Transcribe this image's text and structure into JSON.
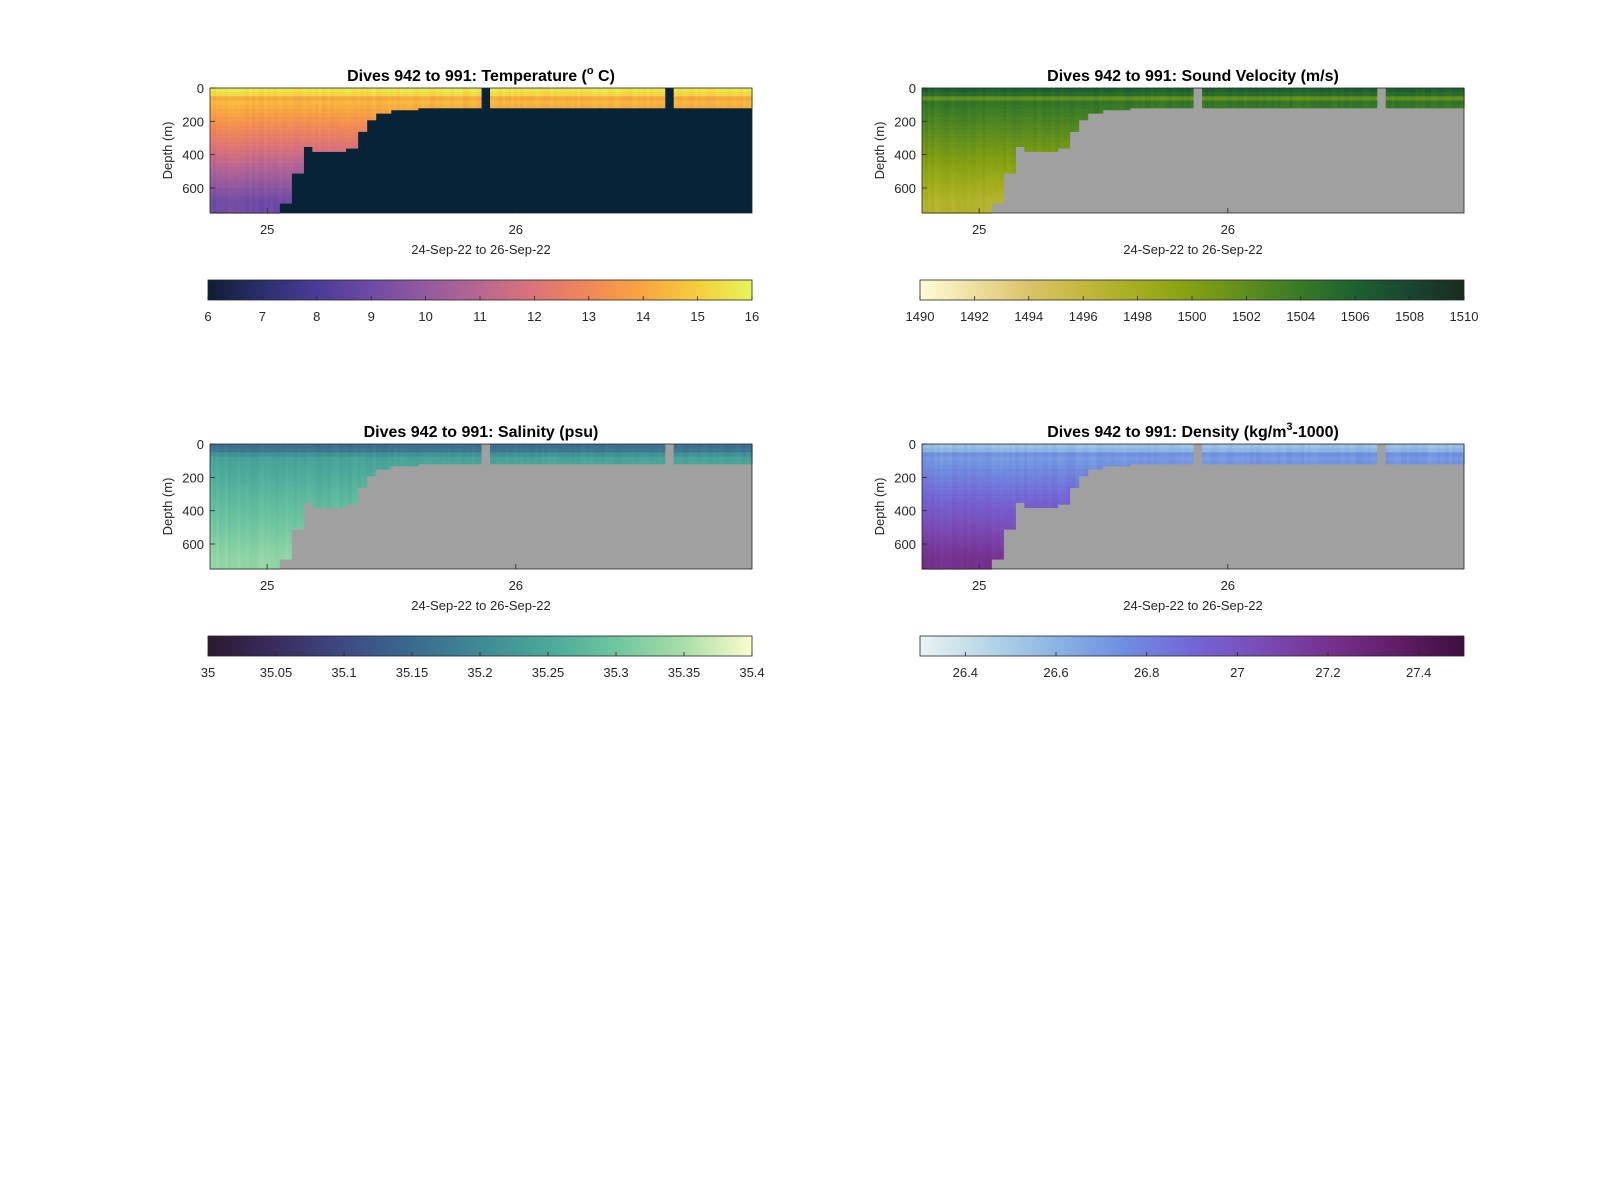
{
  "figure": {
    "background": "#ffffff"
  },
  "chart_data": [
    {
      "type": "heatmap",
      "key": "temp",
      "title": "Dives 942 to 991: Temperature (° C)",
      "title_parts": {
        "before": "Dives 942 to 991: Temperature (",
        "sup": "o",
        "after": " C)"
      },
      "xlabel": "24-Sep-22 to 26-Sep-22",
      "ylabel": "Depth (m)",
      "x_ticks": [
        "25",
        "26"
      ],
      "y_ticks": [
        "0",
        "200",
        "400",
        "600"
      ],
      "ylim": [
        0,
        750
      ],
      "xlim_days": [
        24.77,
        26.95
      ],
      "colorbar": {
        "ticks": [
          "6",
          "7",
          "8",
          "9",
          "10",
          "11",
          "12",
          "13",
          "14",
          "15",
          "16"
        ],
        "tick_values": [
          6,
          7,
          8,
          9,
          10,
          11,
          12,
          13,
          14,
          15,
          16
        ],
        "range": [
          6,
          16
        ],
        "colors": [
          "#0f1d35",
          "#2b2f6e",
          "#4a3b96",
          "#6f4ba6",
          "#935a9f",
          "#b86692",
          "#dc7478",
          "#f18758",
          "#f8a640",
          "#f6cd3b",
          "#e5f55b"
        ]
      },
      "mask_color": "#062337",
      "no_data_color": "#062337",
      "field": {
        "surface_value": 14.5,
        "deep_value": 9.0,
        "thermocline_depth": 80,
        "cap_top_value": 15.6,
        "cap_bottom_value": 13.2
      }
    },
    {
      "type": "heatmap",
      "key": "sv",
      "title": "Dives 942 to 991: Sound Velocity (m/s)",
      "xlabel": "24-Sep-22 to 26-Sep-22",
      "ylabel": "Depth (m)",
      "x_ticks": [
        "25",
        "26"
      ],
      "y_ticks": [
        "0",
        "200",
        "400",
        "600"
      ],
      "ylim": [
        0,
        750
      ],
      "xlim_days": [
        24.77,
        26.95
      ],
      "colorbar": {
        "ticks": [
          "1490",
          "1492",
          "1494",
          "1496",
          "1498",
          "1500",
          "1502",
          "1504",
          "1506",
          "1508",
          "1510"
        ],
        "tick_values": [
          1490,
          1492,
          1494,
          1496,
          1498,
          1500,
          1502,
          1504,
          1506,
          1508,
          1510
        ],
        "range": [
          1490,
          1510
        ],
        "colors": [
          "#fefcd8",
          "#eedfa0",
          "#d9c46a",
          "#c2b83c",
          "#a4ae1e",
          "#84a012",
          "#5e8d1e",
          "#387a26",
          "#1d6130",
          "#194630",
          "#1a2c20"
        ]
      },
      "mask_color": "#a0a0a0",
      "no_data_color": "#a0a0a0",
      "field": {
        "surface_value": 1504.5,
        "deep_value": 1497.0,
        "thermocline_depth": 80,
        "cap_top_value": 1506.0,
        "cap_bottom_value": 1499.5
      }
    },
    {
      "type": "heatmap",
      "key": "sal",
      "title": "Dives 942 to 991: Salinity (psu)",
      "xlabel": "24-Sep-22 to 26-Sep-22",
      "ylabel": "Depth (m)",
      "x_ticks": [
        "25",
        "26"
      ],
      "y_ticks": [
        "0",
        "200",
        "400",
        "600"
      ],
      "ylim": [
        0,
        750
      ],
      "xlim_days": [
        24.77,
        26.95
      ],
      "colorbar": {
        "ticks": [
          "35",
          "35.05",
          "35.1",
          "35.15",
          "35.2",
          "35.25",
          "35.3",
          "35.35",
          "35.4"
        ],
        "tick_values": [
          35,
          35.05,
          35.1,
          35.15,
          35.2,
          35.25,
          35.3,
          35.35,
          35.4
        ],
        "range": [
          35,
          35.4
        ],
        "colors": [
          "#2a1a30",
          "#3a2c5e",
          "#3e4a84",
          "#3a6a8e",
          "#3f8a95",
          "#4aa89a",
          "#6ec6a0",
          "#a8dea8",
          "#fdfccd"
        ]
      },
      "mask_color": "#a0a0a0",
      "no_data_color": "#a0a0a0",
      "field": {
        "surface_value": 35.24,
        "deep_value": 35.33,
        "thermocline_depth": 80,
        "cap_top_value": 35.16,
        "cap_bottom_value": 35.24
      }
    },
    {
      "type": "heatmap",
      "key": "dens",
      "title": "Dives 942 to 991: Density (kg/m³-1000)",
      "title_parts": {
        "before": "Dives 942 to 991: Density (kg/m",
        "sup": "3",
        "after": "-1000)"
      },
      "xlabel": "24-Sep-22 to 26-Sep-22",
      "ylabel": "Depth (m)",
      "x_ticks": [
        "25",
        "26"
      ],
      "y_ticks": [
        "0",
        "200",
        "400",
        "600"
      ],
      "ylim": [
        0,
        750
      ],
      "xlim_days": [
        24.77,
        26.95
      ],
      "colorbar": {
        "ticks": [
          "26.4",
          "26.6",
          "26.8",
          "27",
          "27.2",
          "27.4"
        ],
        "tick_values": [
          26.4,
          26.6,
          26.8,
          27,
          27.2,
          27.4
        ],
        "range": [
          26.3,
          27.5
        ],
        "colors": [
          "#eaf3f4",
          "#b6d6e6",
          "#8ab4e4",
          "#6f8ee0",
          "#7466d6",
          "#7a4cb6",
          "#76328f",
          "#621d68",
          "#3e0f3e"
        ]
      },
      "mask_color": "#a0a0a0",
      "no_data_color": "#a0a0a0",
      "field": {
        "surface_value": 26.7,
        "deep_value": 27.2,
        "thermocline_depth": 80,
        "cap_top_value": 26.55,
        "cap_bottom_value": 26.85
      }
    }
  ]
}
